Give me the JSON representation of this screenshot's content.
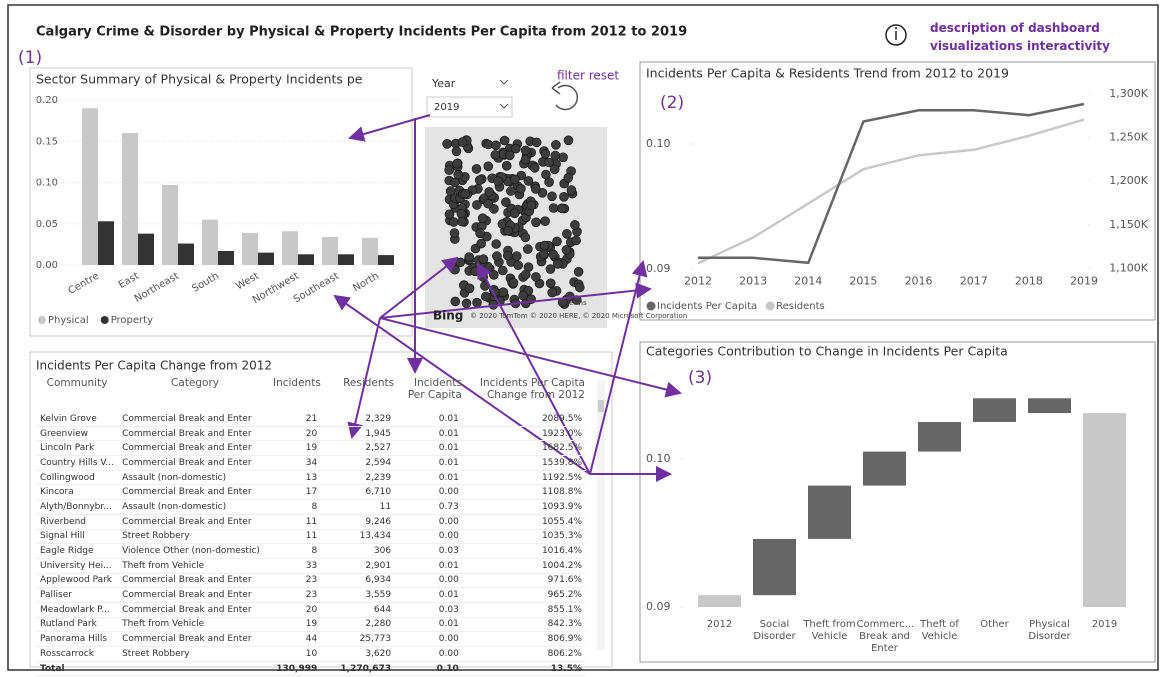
{
  "header": {
    "title": "Calgary Crime & Disorder by Physical & Property Incidents Per Capita from 2012 to 2019",
    "description": "description of dashboard visualizations interactivity",
    "filter_reset": "filter reset",
    "markers": [
      "(1)",
      "(2)",
      "(3)"
    ]
  },
  "filter": {
    "label": "Year",
    "value": "2019"
  },
  "map": {
    "logo": "Bing",
    "attribution": "© 2020 TomTom © 2020 HERE, © 2020 Microsoft Corporation",
    "terms": "Terms"
  },
  "chart_data": [
    {
      "type": "bar",
      "title": "Sector Summary of Physical & Property Incidents pe",
      "categories": [
        "Centre",
        "East",
        "Northeast",
        "South",
        "West",
        "Northwest",
        "Southeast",
        "North"
      ],
      "series": [
        {
          "name": "Physical",
          "color": "#c8c8c8",
          "values": [
            0.19,
            0.16,
            0.097,
            0.055,
            0.039,
            0.041,
            0.034,
            0.033
          ]
        },
        {
          "name": "Property",
          "color": "#333333",
          "values": [
            0.053,
            0.038,
            0.026,
            0.017,
            0.015,
            0.013,
            0.013,
            0.012
          ]
        }
      ],
      "ylim": [
        0,
        0.2
      ],
      "yticks": [
        {
          "value": 0,
          "label": "0.00"
        },
        {
          "value": 0.05,
          "label": "0.05"
        },
        {
          "value": 0.1,
          "label": "0.10"
        },
        {
          "value": 0.15,
          "label": "0.15"
        },
        {
          "value": 0.2,
          "label": "0.20"
        }
      ],
      "grid": true,
      "legend": "bottom-left"
    },
    {
      "type": "line",
      "title": "Incidents Per Capita & Residents Trend from 2012 to 2019",
      "x": [
        2012,
        2013,
        2014,
        2015,
        2016,
        2017,
        2018,
        2019
      ],
      "xlim": [
        2012,
        2019
      ],
      "xticks": [
        2012,
        2013,
        2014,
        2015,
        2016,
        2017,
        2018,
        2019
      ],
      "series": [
        {
          "name": "Incidents Per Capita",
          "color": "#666666",
          "values": [
            0.0909,
            0.0909,
            0.0905,
            0.1018,
            0.1027,
            0.1027,
            0.1023,
            0.1032
          ]
        },
        {
          "name": "Residents",
          "color": "#c8c8c8",
          "axis": "y2",
          "values": [
            1105700,
            1135400,
            1174300,
            1213700,
            1229700,
            1236000,
            1252000,
            1270673
          ]
        }
      ],
      "ylim": [
        0.089,
        0.1047
      ],
      "yticks": [
        {
          "value": 0.09,
          "label": "0.09"
        },
        {
          "value": 0.1,
          "label": "0.10"
        }
      ],
      "y2lim": [
        1085000,
        1310000
      ],
      "y2ticks": [
        {
          "value": 1100000,
          "label": "1,100K"
        },
        {
          "value": 1150000,
          "label": "1,150K"
        },
        {
          "value": 1200000,
          "label": "1,200K"
        },
        {
          "value": 1250000,
          "label": "1,250K"
        },
        {
          "value": 1300000,
          "label": "1,300K"
        }
      ],
      "grid": false,
      "legend": "bottom-left"
    },
    {
      "type": "waterfall",
      "title": "Categories Contribution to Change in Incidents Per Capita",
      "categories": [
        "2012",
        "Social Disorder",
        "Theft from Vehicle",
        "Commerc... Break and Enter",
        "Theft of Vehicle",
        "Other",
        "Physical Disorder",
        "2019"
      ],
      "values": [
        0.0908,
        0.0038,
        0.0036,
        0.0023,
        0.002,
        0.0016,
        -0.001,
        0.1031
      ],
      "is_total": [
        true,
        false,
        false,
        false,
        false,
        false,
        false,
        true
      ],
      "total_color": "#c8c8c8",
      "change_color": "#666666",
      "ylim": [
        0.09,
        0.1057
      ],
      "yticks": [
        {
          "value": 0.09,
          "label": "0.09"
        },
        {
          "value": 0.1,
          "label": "0.10"
        }
      ],
      "grid": false
    }
  ],
  "table": {
    "title": "Incidents Per Capita Change from 2012",
    "columns": [
      "Community",
      "Category",
      "Incidents",
      "Residents",
      "Incidents Per Capita",
      "Incidents Per Capita Change from 2012"
    ],
    "rows": [
      [
        "Kelvin Grove",
        "Commercial Break and Enter",
        "21",
        "2,329",
        "0.01",
        "2089.5%"
      ],
      [
        "Greenview",
        "Commercial Break and Enter",
        "20",
        "1,945",
        "0.01",
        "1923.0%"
      ],
      [
        "Lincoln Park",
        "Commercial Break and Enter",
        "19",
        "2,527",
        "0.01",
        "1682.5%"
      ],
      [
        "Country Hills V...",
        "Commercial Break and Enter",
        "34",
        "2,594",
        "0.01",
        "1539.8%"
      ],
      [
        "Collingwood",
        "Assault (non-domestic)",
        "13",
        "2,239",
        "0.01",
        "1192.5%"
      ],
      [
        "Kincora",
        "Commercial Break and Enter",
        "17",
        "6,710",
        "0.00",
        "1108.8%"
      ],
      [
        "Alyth/Bonnybr...",
        "Assault (non-domestic)",
        "8",
        "11",
        "0.73",
        "1093.9%"
      ],
      [
        "Riverbend",
        "Commercial Break and Enter",
        "11",
        "9,246",
        "0.00",
        "1055.4%"
      ],
      [
        "Signal Hill",
        "Street Robbery",
        "11",
        "13,434",
        "0.00",
        "1035.3%"
      ],
      [
        "Eagle Ridge",
        "Violence Other (non-domestic)",
        "8",
        "306",
        "0.03",
        "1016.4%"
      ],
      [
        "University Hei...",
        "Theft from Vehicle",
        "33",
        "2,901",
        "0.01",
        "1004.2%"
      ],
      [
        "Applewood Park",
        "Commercial Break and Enter",
        "23",
        "6,934",
        "0.00",
        "971.6%"
      ],
      [
        "Palliser",
        "Commercial Break and Enter",
        "23",
        "3,559",
        "0.01",
        "965.2%"
      ],
      [
        "Meadowlark P...",
        "Commercial Break and Enter",
        "20",
        "644",
        "0.03",
        "855.1%"
      ],
      [
        "Rutland Park",
        "Theft from Vehicle",
        "19",
        "2,280",
        "0.01",
        "842.3%"
      ],
      [
        "Panorama Hills",
        "Commercial Break and Enter",
        "44",
        "25,773",
        "0.00",
        "806.9%"
      ],
      [
        "Rosscarrock",
        "Street Robbery",
        "10",
        "3,620",
        "0.00",
        "806.2%"
      ]
    ],
    "total": [
      "Total",
      "",
      "130,999",
      "1,270,673",
      "0.10",
      "13.5%"
    ]
  }
}
